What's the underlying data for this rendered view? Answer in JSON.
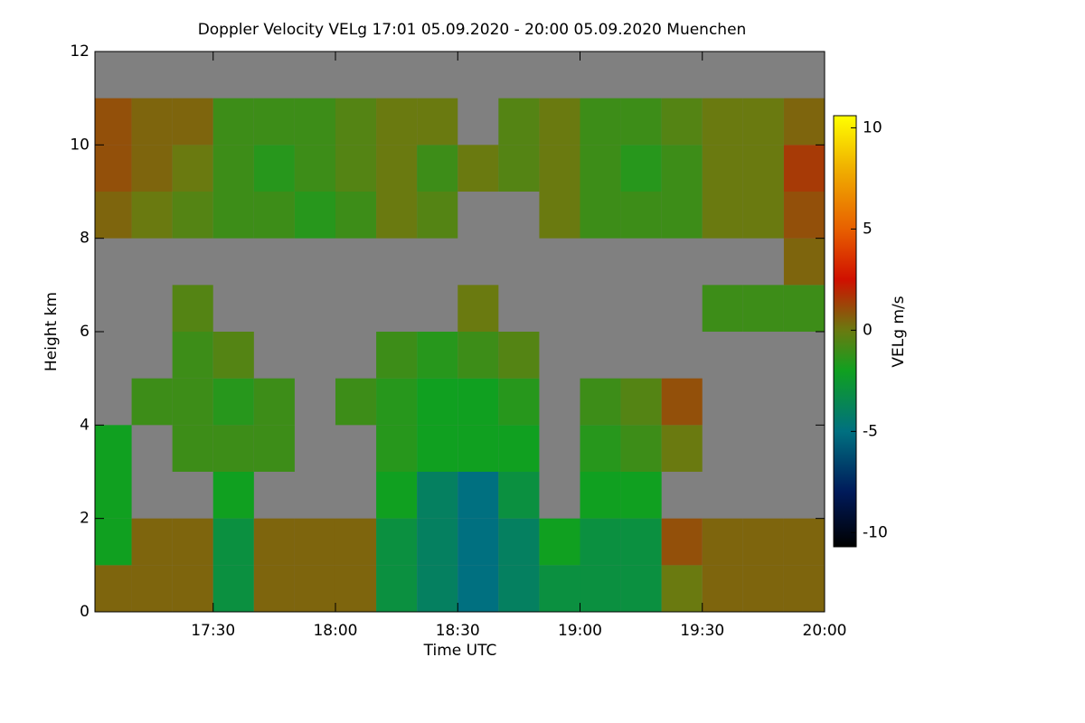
{
  "chart_data": {
    "type": "heatmap",
    "title": "Doppler Velocity VELg   17:01 05.09.2020 - 20:00 05.09.2020 Muenchen",
    "xlabel": "Time UTC",
    "ylabel": "Height km",
    "colorbar_label": "VELg m/s",
    "xlim": [
      1021,
      1200
    ],
    "xticks": [
      {
        "value": 1050,
        "label": "17:30"
      },
      {
        "value": 1080,
        "label": "18:00"
      },
      {
        "value": 1110,
        "label": "18:30"
      },
      {
        "value": 1140,
        "label": "19:00"
      },
      {
        "value": 1170,
        "label": "19:30"
      },
      {
        "value": 1200,
        "label": "20:00"
      }
    ],
    "ylim": [
      0,
      12
    ],
    "yticks": [
      0,
      2,
      4,
      6,
      8,
      10,
      12
    ],
    "clim": [
      -10.7,
      10.6
    ],
    "cticks": [
      -10,
      -5,
      0,
      5,
      10
    ],
    "missing_color": "#808080",
    "colorscale": [
      [
        -10.7,
        "#000000"
      ],
      [
        -8,
        "#001a5a"
      ],
      [
        -5,
        "#007080"
      ],
      [
        -2,
        "#10a020"
      ],
      [
        0,
        "#6a7a10"
      ],
      [
        2.5,
        "#d01000"
      ],
      [
        5,
        "#e86000"
      ],
      [
        8,
        "#f0b000"
      ],
      [
        10.6,
        "#ffff00"
      ]
    ],
    "xbins": [
      1021,
      1030,
      1040,
      1050,
      1060,
      1070,
      1080,
      1090,
      1100,
      1110,
      1120,
      1130,
      1140,
      1150,
      1160,
      1170,
      1180,
      1190,
      1200
    ],
    "ybins": [
      0,
      1,
      2,
      3,
      4,
      5,
      6,
      7,
      8,
      9,
      10,
      11,
      12
    ],
    "z": [
      [
        0.5,
        0.5,
        0.5,
        -3,
        0.5,
        0.5,
        0.5,
        -3,
        -4,
        -5,
        -4,
        -3,
        -3,
        -3,
        0,
        0.5,
        0.5,
        0.5
      ],
      [
        -2,
        0.5,
        0.5,
        -3,
        0.5,
        0.5,
        0.5,
        -3,
        -4,
        -5,
        -4,
        -2,
        -3,
        -3,
        1,
        0.5,
        0.5,
        0.5
      ],
      [
        -2,
        null,
        null,
        -2,
        null,
        null,
        null,
        -2,
        -4,
        -5,
        -3,
        null,
        -2,
        -2,
        null,
        null,
        null,
        null
      ],
      [
        -2,
        null,
        -1,
        -1,
        -1,
        null,
        null,
        -1.5,
        -2,
        -2,
        -2,
        null,
        -1.5,
        -1,
        0,
        null,
        null,
        null
      ],
      [
        null,
        -1,
        -1,
        -1.5,
        -1,
        null,
        -1,
        -1.5,
        -2,
        -2,
        -1.5,
        null,
        -1,
        -0.5,
        1,
        null,
        null,
        null
      ],
      [
        null,
        null,
        -1,
        -0.5,
        null,
        null,
        null,
        -1,
        -1.5,
        -1,
        -0.5,
        null,
        null,
        null,
        null,
        null,
        null,
        null
      ],
      [
        null,
        null,
        -0.5,
        null,
        null,
        null,
        null,
        null,
        null,
        0,
        null,
        null,
        null,
        null,
        null,
        -1,
        -1,
        -1
      ],
      [
        null,
        null,
        null,
        null,
        null,
        null,
        null,
        null,
        null,
        null,
        null,
        null,
        null,
        null,
        null,
        null,
        null,
        0.5
      ],
      [
        0.5,
        0,
        -0.5,
        -1,
        -1,
        -1.5,
        -1,
        0,
        -0.5,
        null,
        null,
        0,
        -1,
        -1,
        -1,
        0,
        0,
        1
      ],
      [
        1,
        0.5,
        0,
        -1,
        -1.5,
        -1,
        -0.5,
        0,
        -1,
        0,
        -0.5,
        0,
        -1,
        -1.5,
        -1,
        0,
        0,
        1.5
      ],
      [
        1,
        0.5,
        0.5,
        -1,
        -1,
        -1,
        -0.5,
        0,
        0,
        null,
        -0.5,
        0,
        -1,
        -1,
        -0.5,
        0,
        0,
        0.5
      ],
      [
        null,
        null,
        null,
        null,
        null,
        null,
        null,
        null,
        null,
        null,
        null,
        null,
        null,
        null,
        null,
        null,
        null,
        null
      ]
    ]
  }
}
